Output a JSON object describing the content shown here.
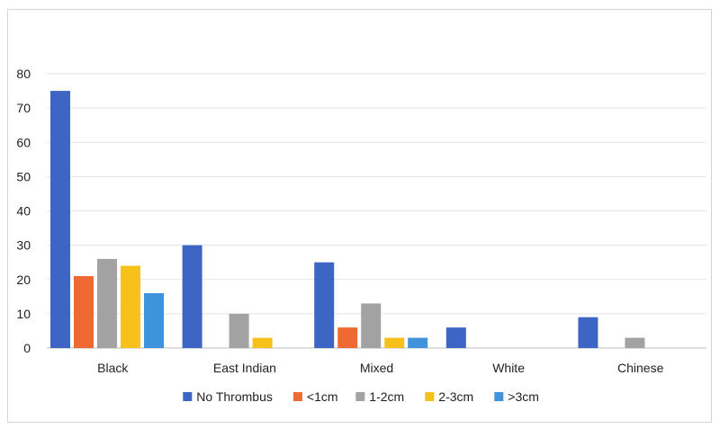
{
  "chart_data": {
    "type": "bar",
    "title": "",
    "xlabel": "",
    "ylabel": "",
    "categories": [
      "Black",
      "East Indian",
      "Mixed",
      "White",
      "Chinese"
    ],
    "series": [
      {
        "name": "No Thrombus",
        "color": "#3d66c4",
        "values": [
          75,
          30,
          25,
          6,
          9
        ]
      },
      {
        "name": "<1cm",
        "color": "#ef6a33",
        "values": [
          21,
          0,
          6,
          0,
          0
        ]
      },
      {
        "name": "1-2cm",
        "color": "#a2a2a2",
        "values": [
          26,
          10,
          13,
          0,
          3
        ]
      },
      {
        "name": "2-3cm",
        "color": "#f7c11b",
        "values": [
          24,
          3,
          3,
          0,
          0
        ]
      },
      {
        "name": ">3cm",
        "color": "#3f93db",
        "values": [
          16,
          0,
          3,
          0,
          0
        ]
      }
    ],
    "yticks": [
      0,
      10,
      20,
      30,
      40,
      50,
      60,
      70,
      80
    ],
    "ylim": [
      0,
      80
    ],
    "grid": true,
    "legend_position": "bottom"
  }
}
